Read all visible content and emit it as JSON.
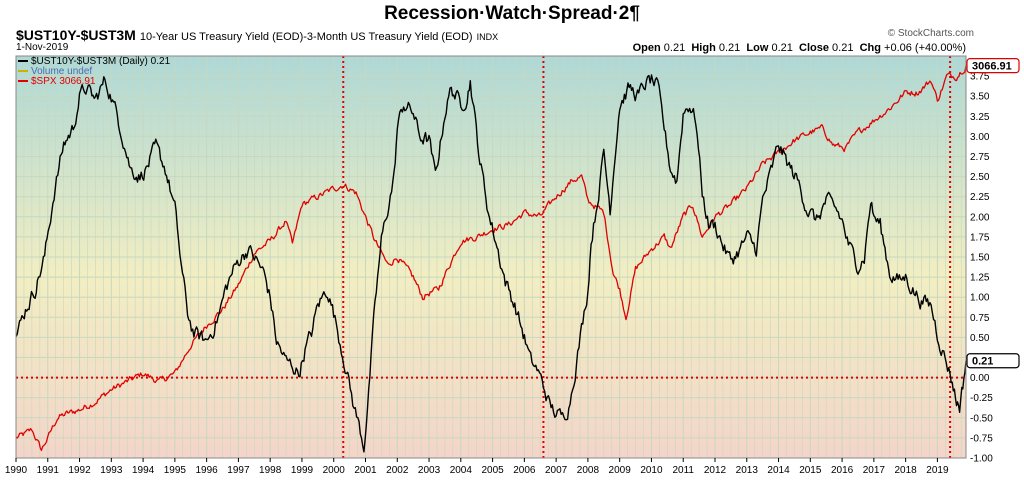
{
  "page": {
    "title": "Recession·Watch·Spread·2¶",
    "symbol": "$UST10Y-$UST3M",
    "description": "10-Year US Treasury Yield (EOD)-3-Month US Treasury Yield (EOD)",
    "exchange": "INDX",
    "date": "1-Nov-2019",
    "copyright": "© StockCharts.com"
  },
  "ohlc": {
    "open_label": "Open",
    "open": "0.21",
    "high_label": "High",
    "high": "0.21",
    "low_label": "Low",
    "low": "0.21",
    "close_label": "Close",
    "close": "0.21",
    "chg_label": "Chg",
    "chg": "+0.06 (+40.00%)"
  },
  "colors": {
    "spread": "#000000",
    "spx": "#e00000",
    "volume": "#c8b400",
    "refline": "#e00000",
    "bg_top": "#aed8d6",
    "bg_mid": "#f2eec2",
    "bg_bottom": "#f3d5c9",
    "grid": "#c6d8c0"
  },
  "chart_data": {
    "type": "line",
    "xlim": [
      1990.0,
      2019.9
    ],
    "ylim": [
      -1.0,
      4.0
    ],
    "y_ticks": [
      "-1.00",
      "-0.75",
      "-0.50",
      "-0.25",
      "0.00",
      "0.25",
      "0.50",
      "0.75",
      "1.00",
      "1.25",
      "1.50",
      "1.75",
      "2.00",
      "2.25",
      "2.50",
      "2.75",
      "3.00",
      "3.25",
      "3.50",
      "3.75"
    ],
    "x_ticks": [
      "1990",
      "1991",
      "1992",
      "1993",
      "1994",
      "1995",
      "1996",
      "1997",
      "1998",
      "1999",
      "2000",
      "2001",
      "2002",
      "2003",
      "2004",
      "2005",
      "2006",
      "2007",
      "2008",
      "2009",
      "2010",
      "2011",
      "2012",
      "2013",
      "2014",
      "2015",
      "2016",
      "2017",
      "2018",
      "2019"
    ],
    "grid": true,
    "legend_position": "top-left",
    "legend": [
      {
        "label": "$UST10Y-$UST3M (Daily) 0.21",
        "color": "#000000"
      },
      {
        "label": "Volume undef",
        "color": "#c8b400"
      },
      {
        "label": "$SPX 3066.91",
        "color": "#e00000"
      }
    ],
    "price_labels": [
      {
        "value": "3066.91",
        "y": 3.88,
        "color": "#e00000"
      },
      {
        "value": "0.21",
        "y": 0.21,
        "color": "#000000"
      }
    ],
    "reference_lines": {
      "horizontal": [
        0.0
      ],
      "vertical": [
        2000.3,
        2006.6,
        2019.4
      ]
    },
    "series": [
      {
        "name": "$UST10Y-$UST3M (Daily) 0.21",
        "points": [
          [
            1990.0,
            0.5
          ],
          [
            1990.3,
            0.85
          ],
          [
            1990.6,
            1.1
          ],
          [
            1990.9,
            1.5
          ],
          [
            1991.2,
            2.3
          ],
          [
            1991.5,
            2.9
          ],
          [
            1991.8,
            3.1
          ],
          [
            1992.0,
            3.5
          ],
          [
            1992.2,
            3.6
          ],
          [
            1992.5,
            3.45
          ],
          [
            1992.8,
            3.7
          ],
          [
            1993.0,
            3.5
          ],
          [
            1993.3,
            3.1
          ],
          [
            1993.6,
            2.6
          ],
          [
            1993.9,
            2.5
          ],
          [
            1994.1,
            2.6
          ],
          [
            1994.4,
            2.85
          ],
          [
            1994.7,
            2.6
          ],
          [
            1995.0,
            2.1
          ],
          [
            1995.2,
            1.4
          ],
          [
            1995.4,
            0.8
          ],
          [
            1995.6,
            0.55
          ],
          [
            1995.8,
            0.5
          ],
          [
            1996.0,
            0.45
          ],
          [
            1996.2,
            0.6
          ],
          [
            1996.4,
            0.8
          ],
          [
            1996.6,
            1.1
          ],
          [
            1996.8,
            1.3
          ],
          [
            1997.0,
            1.45
          ],
          [
            1997.3,
            1.6
          ],
          [
            1997.5,
            1.5
          ],
          [
            1997.8,
            1.3
          ],
          [
            1998.0,
            1.0
          ],
          [
            1998.2,
            0.45
          ],
          [
            1998.5,
            0.2
          ],
          [
            1998.7,
            0.15
          ],
          [
            1998.9,
            0.05
          ],
          [
            1999.1,
            0.35
          ],
          [
            1999.3,
            0.55
          ],
          [
            1999.5,
            0.9
          ],
          [
            1999.8,
            1.1
          ],
          [
            2000.0,
            0.8
          ],
          [
            2000.2,
            0.45
          ],
          [
            2000.4,
            0.1
          ],
          [
            2000.6,
            -0.3
          ],
          [
            2000.8,
            -0.6
          ],
          [
            2000.95,
            -0.85
          ],
          [
            2001.1,
            -0.2
          ],
          [
            2001.3,
            0.9
          ],
          [
            2001.5,
            1.7
          ],
          [
            2001.7,
            2.1
          ],
          [
            2001.9,
            2.5
          ],
          [
            2002.0,
            3.1
          ],
          [
            2002.2,
            3.4
          ],
          [
            2002.5,
            3.3
          ],
          [
            2002.7,
            3.0
          ],
          [
            2003.0,
            2.95
          ],
          [
            2003.2,
            2.5
          ],
          [
            2003.5,
            3.3
          ],
          [
            2003.7,
            3.6
          ],
          [
            2004.0,
            3.4
          ],
          [
            2004.2,
            3.5
          ],
          [
            2004.3,
            3.7
          ],
          [
            2004.6,
            2.7
          ],
          [
            2004.9,
            2.0
          ],
          [
            2005.1,
            1.7
          ],
          [
            2005.4,
            1.2
          ],
          [
            2005.7,
            0.9
          ],
          [
            2006.0,
            0.5
          ],
          [
            2006.2,
            0.2
          ],
          [
            2006.4,
            0.1
          ],
          [
            2006.6,
            -0.1
          ],
          [
            2006.8,
            -0.35
          ],
          [
            2007.0,
            -0.45
          ],
          [
            2007.2,
            -0.5
          ],
          [
            2007.4,
            -0.35
          ],
          [
            2007.6,
            0.1
          ],
          [
            2007.8,
            0.6
          ],
          [
            2008.0,
            1.1
          ],
          [
            2008.1,
            1.7
          ],
          [
            2008.3,
            2.2
          ],
          [
            2008.5,
            2.8
          ],
          [
            2008.7,
            2.1
          ],
          [
            2008.9,
            3.0
          ],
          [
            2009.0,
            3.4
          ],
          [
            2009.3,
            3.6
          ],
          [
            2009.6,
            3.5
          ],
          [
            2009.8,
            3.65
          ],
          [
            2010.0,
            3.7
          ],
          [
            2010.2,
            3.6
          ],
          [
            2010.4,
            3.1
          ],
          [
            2010.6,
            2.6
          ],
          [
            2010.8,
            2.45
          ],
          [
            2011.0,
            3.3
          ],
          [
            2011.2,
            3.4
          ],
          [
            2011.4,
            3.2
          ],
          [
            2011.6,
            2.3
          ],
          [
            2011.8,
            1.9
          ],
          [
            2012.0,
            1.9
          ],
          [
            2012.3,
            1.6
          ],
          [
            2012.5,
            1.45
          ],
          [
            2012.8,
            1.6
          ],
          [
            2013.0,
            1.75
          ],
          [
            2013.3,
            1.6
          ],
          [
            2013.5,
            2.2
          ],
          [
            2013.8,
            2.6
          ],
          [
            2014.0,
            2.9
          ],
          [
            2014.3,
            2.65
          ],
          [
            2014.6,
            2.45
          ],
          [
            2014.9,
            2.1
          ],
          [
            2015.2,
            1.95
          ],
          [
            2015.5,
            2.2
          ],
          [
            2015.8,
            2.1
          ],
          [
            2016.0,
            1.95
          ],
          [
            2016.2,
            1.65
          ],
          [
            2016.5,
            1.4
          ],
          [
            2016.7,
            1.5
          ],
          [
            2016.9,
            2.2
          ],
          [
            2017.0,
            2.0
          ],
          [
            2017.2,
            1.9
          ],
          [
            2017.5,
            1.3
          ],
          [
            2017.8,
            1.2
          ],
          [
            2018.0,
            1.25
          ],
          [
            2018.3,
            1.05
          ],
          [
            2018.5,
            0.95
          ],
          [
            2018.8,
            0.9
          ],
          [
            2019.0,
            0.55
          ],
          [
            2019.2,
            0.3
          ],
          [
            2019.4,
            0.05
          ],
          [
            2019.5,
            -0.1
          ],
          [
            2019.6,
            -0.3
          ],
          [
            2019.7,
            -0.35
          ],
          [
            2019.8,
            -0.1
          ],
          [
            2019.9,
            0.21
          ]
        ]
      },
      {
        "name": "$SPX 3066.91",
        "points": [
          [
            1990.0,
            -0.75
          ],
          [
            1990.3,
            -0.7
          ],
          [
            1990.5,
            -0.65
          ],
          [
            1990.8,
            -0.9
          ],
          [
            1991.0,
            -0.75
          ],
          [
            1991.3,
            -0.5
          ],
          [
            1991.6,
            -0.45
          ],
          [
            1992.0,
            -0.4
          ],
          [
            1992.5,
            -0.3
          ],
          [
            1993.0,
            -0.15
          ],
          [
            1993.5,
            -0.05
          ],
          [
            1994.0,
            0.05
          ],
          [
            1994.5,
            -0.05
          ],
          [
            1995.0,
            0.05
          ],
          [
            1995.5,
            0.4
          ],
          [
            1996.0,
            0.65
          ],
          [
            1996.5,
            0.85
          ],
          [
            1997.0,
            1.15
          ],
          [
            1997.5,
            1.55
          ],
          [
            1998.0,
            1.7
          ],
          [
            1998.5,
            1.95
          ],
          [
            1998.7,
            1.65
          ],
          [
            1999.0,
            2.15
          ],
          [
            1999.5,
            2.25
          ],
          [
            2000.0,
            2.35
          ],
          [
            2000.3,
            2.4
          ],
          [
            2000.7,
            2.3
          ],
          [
            2001.0,
            2.0
          ],
          [
            2001.3,
            1.7
          ],
          [
            2001.7,
            1.4
          ],
          [
            2002.0,
            1.5
          ],
          [
            2002.5,
            1.25
          ],
          [
            2002.8,
            1.0
          ],
          [
            2003.0,
            1.05
          ],
          [
            2003.3,
            1.1
          ],
          [
            2003.7,
            1.45
          ],
          [
            2004.0,
            1.7
          ],
          [
            2004.5,
            1.75
          ],
          [
            2005.0,
            1.85
          ],
          [
            2005.5,
            1.9
          ],
          [
            2006.0,
            2.05
          ],
          [
            2006.5,
            2.0
          ],
          [
            2007.0,
            2.25
          ],
          [
            2007.5,
            2.45
          ],
          [
            2007.8,
            2.5
          ],
          [
            2008.0,
            2.2
          ],
          [
            2008.5,
            2.05
          ],
          [
            2008.8,
            1.3
          ],
          [
            2009.0,
            1.1
          ],
          [
            2009.2,
            0.75
          ],
          [
            2009.5,
            1.35
          ],
          [
            2010.0,
            1.6
          ],
          [
            2010.4,
            1.75
          ],
          [
            2010.6,
            1.6
          ],
          [
            2011.0,
            2.0
          ],
          [
            2011.3,
            2.15
          ],
          [
            2011.6,
            1.75
          ],
          [
            2012.0,
            2.0
          ],
          [
            2012.5,
            2.15
          ],
          [
            2013.0,
            2.35
          ],
          [
            2013.5,
            2.65
          ],
          [
            2014.0,
            2.8
          ],
          [
            2014.5,
            2.95
          ],
          [
            2015.0,
            3.05
          ],
          [
            2015.4,
            3.1
          ],
          [
            2015.7,
            2.9
          ],
          [
            2016.1,
            2.85
          ],
          [
            2016.5,
            3.05
          ],
          [
            2017.0,
            3.2
          ],
          [
            2017.5,
            3.35
          ],
          [
            2018.0,
            3.55
          ],
          [
            2018.4,
            3.55
          ],
          [
            2018.8,
            3.7
          ],
          [
            2019.0,
            3.45
          ],
          [
            2019.3,
            3.75
          ],
          [
            2019.6,
            3.75
          ],
          [
            2019.9,
            3.88
          ]
        ]
      }
    ]
  }
}
